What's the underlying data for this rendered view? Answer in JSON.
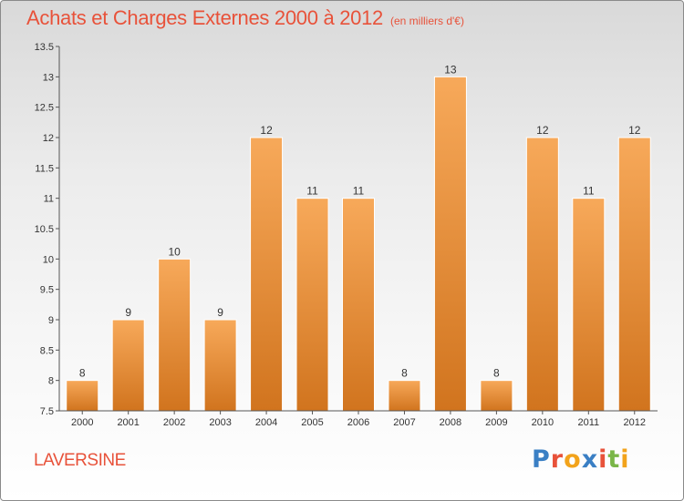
{
  "header": {
    "title": "Achats et Charges Externes 2000 à 2012",
    "unit": "(en milliers d'€)"
  },
  "footer": {
    "commune": "LAVERSINE",
    "logo_text": "Proxiti",
    "logo_colors": [
      "#3a7fc4",
      "#e8523a",
      "#f2a31b",
      "#3a7fc4",
      "#e8523a",
      "#7ab648",
      "#f2a31b"
    ]
  },
  "colors": {
    "bar_light": "#f7a95a",
    "bar_dark": "#d1741e",
    "bar_stroke": "#ffffff",
    "axis": "#555555",
    "text_accent": "#e8523a"
  },
  "chart_data": {
    "type": "bar",
    "title": "Achats et Charges Externes 2000 à 2012",
    "subtitle": "(en milliers d'€)",
    "xlabel": "",
    "ylabel": "",
    "categories": [
      "2000",
      "2001",
      "2002",
      "2003",
      "2004",
      "2005",
      "2006",
      "2007",
      "2008",
      "2009",
      "2010",
      "2011",
      "2012"
    ],
    "values": [
      8,
      9,
      10,
      9,
      12,
      11,
      11,
      8,
      13,
      8,
      12,
      11,
      12
    ],
    "value_labels": [
      "8",
      "9",
      "10",
      "9",
      "12",
      "11",
      "11",
      "8",
      "13",
      "8",
      "12",
      "11",
      "12"
    ],
    "ylim": [
      7.5,
      13.5
    ],
    "yticks": [
      7.5,
      8,
      8.5,
      9,
      9.5,
      10,
      10.5,
      11,
      11.5,
      12,
      12.5,
      13,
      13.5
    ],
    "ytick_labels": [
      "7.5",
      "8",
      "8.5",
      "9",
      "9.5",
      "10",
      "10.5",
      "11",
      "11.5",
      "12",
      "12.5",
      "13",
      "13.5"
    ],
    "grid": false,
    "legend": "none"
  }
}
